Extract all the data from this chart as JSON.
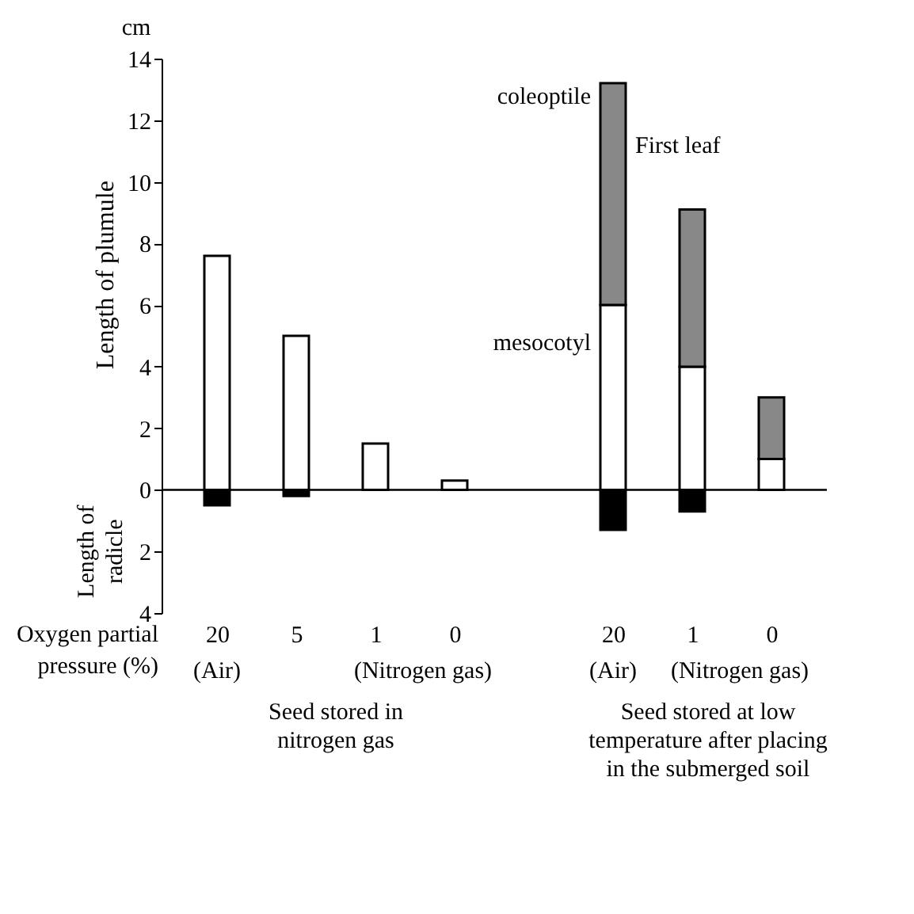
{
  "chart_data": {
    "type": "bar",
    "stacked": true,
    "ylabel": "Length of plumule",
    "xlabel": "Oxygen partial pressure (%)",
    "categories": [
      "20",
      "5",
      "1",
      "0",
      null,
      "20",
      "1",
      "0"
    ],
    "series": [
      {
        "color": "#000000",
        "values": [
          -0.5,
          -0.2,
          null,
          null,
          null,
          -1.3,
          -0.7,
          null
        ]
      },
      {
        "color": "#ffffff",
        "values": [
          7.6,
          5.0,
          1.5,
          0.3,
          null,
          6.0,
          4.0,
          1.0
        ]
      },
      {
        "color": "#888888",
        "values": [
          null,
          null,
          null,
          null,
          null,
          7.2,
          5.1,
          2.0
        ]
      }
    ],
    "ylim": [
      -4,
      14
    ],
    "yticks": [
      {
        "value": -4,
        "label": "4"
      },
      {
        "value": -2,
        "label": "2"
      },
      0,
      2,
      4,
      6,
      8,
      10,
      12,
      14
    ],
    "ref_lines": [
      {
        "axis": "y",
        "value": 0
      }
    ],
    "annotations": [
      "(Air)",
      "(Nitrogen gas)",
      "Seed stored in nitrogen gas",
      "(Air)",
      "(Nitrogen gas)",
      "Seed stored at low temperature after placing in the submerged soil",
      "coleoptile",
      "First leaf",
      "mesocotyl",
      "Length of radicle",
      "cm"
    ]
  }
}
